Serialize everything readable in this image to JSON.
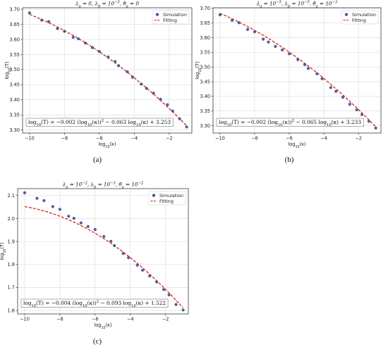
{
  "chart_data": [
    {
      "type": "scatter",
      "caption": "(a)",
      "title": "λ_a = 0,   λ_b = 10^-5,   θ̄_a = 0",
      "xlabel": "log10(κ)",
      "ylabel": "log10(T)",
      "xlim": [
        -10.4,
        -0.7
      ],
      "ylim": [
        3.29,
        3.705
      ],
      "xticks": [
        -10,
        -8,
        -6,
        -4,
        -2
      ],
      "xtick_labels": [
        "−10",
        "−8",
        "−6",
        "−4",
        "−2"
      ],
      "yticks": [
        3.3,
        3.35,
        3.4,
        3.45,
        3.5,
        3.55,
        3.6,
        3.65,
        3.7
      ],
      "ytick_labels": [
        "3.30",
        "3.35",
        "3.40",
        "3.45",
        "3.50",
        "3.55",
        "3.60",
        "3.65",
        "3.70"
      ],
      "grid": true,
      "legend_position": "top-right",
      "legend": [
        "Simulation",
        "Fitting"
      ],
      "annotation": "log10(T) = −0.002 (log10(κ))² − 0.063 log10(κ) + 3.253",
      "fit": {
        "a": -0.002,
        "b": -0.063,
        "c": 3.253
      },
      "series": [
        {
          "name": "Simulation",
          "x": [
            -10.0,
            -9.3,
            -8.9,
            -8.4,
            -8.0,
            -7.5,
            -7.2,
            -6.8,
            -6.4,
            -6.0,
            -5.5,
            -5.1,
            -4.9,
            -4.4,
            -4.1,
            -3.6,
            -3.3,
            -2.9,
            -2.5,
            -2.1,
            -1.8,
            -1.4,
            -1.0
          ],
          "y": [
            3.688,
            3.664,
            3.659,
            3.636,
            3.627,
            3.607,
            3.602,
            3.588,
            3.573,
            3.56,
            3.542,
            3.527,
            3.513,
            3.493,
            3.475,
            3.452,
            3.438,
            3.422,
            3.402,
            3.384,
            3.363,
            3.337,
            3.31
          ]
        },
        {
          "name": "Fitting",
          "style": "dashed"
        }
      ]
    },
    {
      "type": "scatter",
      "caption": "(b)",
      "title": "λ_a = 10^-5,   λ_b = 10^-5,   θ̄_a = 10^-3",
      "xlabel": "log10(κ)",
      "ylabel": "log10(T)",
      "xlim": [
        -10.4,
        -0.7
      ],
      "ylim": [
        3.275,
        3.702
      ],
      "xticks": [
        -10,
        -8,
        -6,
        -4,
        -2
      ],
      "xtick_labels": [
        "−10",
        "−8",
        "−6",
        "−4",
        "−2"
      ],
      "yticks": [
        3.3,
        3.35,
        3.4,
        3.45,
        3.5,
        3.55,
        3.6,
        3.65,
        3.7
      ],
      "ytick_labels": [
        "3.30",
        "3.35",
        "3.40",
        "3.45",
        "3.50",
        "3.55",
        "3.60",
        "3.65",
        "3.70"
      ],
      "grid": true,
      "legend_position": "top-right",
      "legend": [
        "Simulation",
        "Fitting"
      ],
      "annotation": "log10(T) = −0.002 (log10(κ))² − 0.065 log10(κ) + 3.233",
      "fit": {
        "a": -0.002,
        "b": -0.065,
        "c": 3.233
      },
      "series": [
        {
          "name": "Simulation",
          "x": [
            -10.0,
            -9.3,
            -8.9,
            -8.4,
            -8.0,
            -7.5,
            -7.2,
            -6.8,
            -6.4,
            -6.0,
            -5.5,
            -5.1,
            -4.9,
            -4.4,
            -4.1,
            -3.6,
            -3.3,
            -2.9,
            -2.5,
            -2.1,
            -1.8,
            -1.4,
            -1.0
          ],
          "y": [
            3.678,
            3.659,
            3.651,
            3.628,
            3.62,
            3.595,
            3.585,
            3.57,
            3.558,
            3.545,
            3.525,
            3.508,
            3.495,
            3.477,
            3.46,
            3.43,
            3.417,
            3.397,
            3.373,
            3.354,
            3.338,
            3.315,
            3.292
          ]
        },
        {
          "name": "Fitting",
          "style": "dashed"
        }
      ]
    },
    {
      "type": "scatter",
      "caption": "(c)",
      "title": "λ_a = 10^-2,   λ_b = 10^-3,   θ̄_a = 10^-2",
      "xlabel": "log10(κ)",
      "ylabel": "log10(T)",
      "xlim": [
        -10.4,
        -0.7
      ],
      "ylim": [
        1.585,
        2.13
      ],
      "xticks": [
        -10,
        -8,
        -6,
        -4,
        -2
      ],
      "xtick_labels": [
        "−10",
        "−8",
        "−6",
        "−4",
        "−2"
      ],
      "yticks": [
        1.6,
        1.7,
        1.8,
        1.9,
        2.0,
        2.1
      ],
      "ytick_labels": [
        "1.6",
        "1.7",
        "1.8",
        "1.9",
        "2.0",
        "2.1"
      ],
      "grid": true,
      "legend_position": "top-right",
      "legend": [
        "Simulation",
        "Fitting"
      ],
      "annotation": "log10(T) = −0.004 (log10(κ))² − 0.093 log10(κ) + 1.522",
      "fit": {
        "a": -0.004,
        "b": -0.093,
        "c": 1.522
      },
      "series": [
        {
          "name": "Simulation",
          "x": [
            -10.0,
            -9.3,
            -8.9,
            -8.4,
            -8.0,
            -7.5,
            -7.2,
            -6.8,
            -6.4,
            -6.0,
            -5.5,
            -5.1,
            -4.9,
            -4.4,
            -4.1,
            -3.6,
            -3.3,
            -2.9,
            -2.5,
            -2.1,
            -1.8,
            -1.4,
            -1.0
          ],
          "y": [
            2.112,
            2.088,
            2.078,
            2.052,
            2.04,
            2.01,
            2.001,
            1.981,
            1.965,
            1.952,
            1.922,
            1.901,
            1.882,
            1.848,
            1.83,
            1.797,
            1.775,
            1.75,
            1.724,
            1.691,
            1.668,
            1.626,
            1.602
          ]
        },
        {
          "name": "Fitting",
          "style": "dashed"
        }
      ]
    }
  ],
  "colors": {
    "marker": "#3f4f9a",
    "fit": "#e0201b",
    "grid": "#d9d9d9",
    "frame": "#222222"
  }
}
